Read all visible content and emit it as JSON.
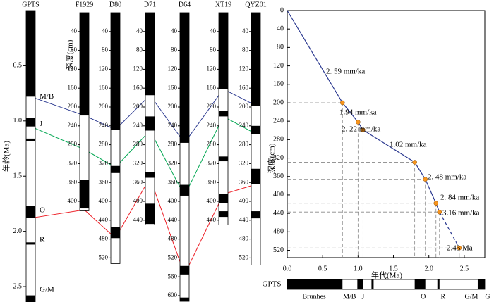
{
  "chart_data": [
    {
      "type": "stratigraphy",
      "ylabel": "年龄(Ma)",
      "depth_label": "深度(cm)",
      "gpts": {
        "name": "GPTS",
        "ylim": [
          0,
          2.64
        ],
        "yticks": [
          0.5,
          {
            "value": 1,
            "label": "1.0"
          },
          1.5,
          {
            "value": 2,
            "label": "2.0"
          },
          2.5
        ],
        "normal": [
          [
            0,
            0.78
          ],
          [
            0.97,
            1.05
          ],
          [
            1.16,
            1.18
          ],
          [
            1.77,
            1.88
          ],
          [
            2.1,
            2.12
          ],
          [
            2.58,
            2.64
          ]
        ],
        "labels": [
          {
            "text": "M/B",
            "age": 0.78,
            "color": "#2b3990"
          },
          {
            "text": "J",
            "age": 1.03,
            "color": "#000000"
          },
          {
            "text": "O",
            "age": 1.81,
            "color": "#000000"
          },
          {
            "text": "R",
            "age": 2.08,
            "color": "#000000"
          },
          {
            "text": "G/M",
            "age": 2.53,
            "color": "#2b3990"
          }
        ]
      },
      "cores": [
        {
          "name": "F1929",
          "ylim": [
            0,
            420
          ],
          "yticks": [
            40,
            80,
            120,
            160,
            200,
            240,
            280,
            320,
            360,
            400
          ],
          "normal": [
            [
              0,
              218
            ],
            [
              355,
              415
            ]
          ]
        },
        {
          "name": "D80",
          "ylim": [
            0,
            532
          ],
          "yticks": [
            40,
            80,
            120,
            160,
            200,
            240,
            280,
            320,
            360,
            400,
            440,
            480,
            520
          ],
          "normal": [
            [
              0,
              248
            ],
            [
              325,
              340
            ],
            [
              455,
              478
            ]
          ]
        },
        {
          "name": "D71",
          "ylim": [
            0,
            450
          ],
          "yticks": [
            40,
            80,
            120,
            160,
            200,
            240,
            280,
            320,
            360,
            400,
            440
          ],
          "normal": [
            [
              0,
              175
            ],
            [
              220,
              250
            ],
            [
              338,
              350
            ],
            [
              405,
              448
            ]
          ]
        },
        {
          "name": "D64",
          "ylim": [
            0,
            612
          ],
          "yticks": [
            40,
            80,
            120,
            160,
            200,
            240,
            280,
            320,
            360,
            400,
            440,
            480,
            520,
            560,
            600
          ],
          "normal": [
            [
              0,
              276
            ],
            [
              365,
              388
            ],
            [
              537,
              555
            ],
            [
              604,
              612
            ]
          ]
        },
        {
          "name": "XT19",
          "ylim": [
            0,
            450
          ],
          "yticks": [
            40,
            80,
            120,
            160,
            200,
            240,
            280,
            320,
            360,
            400,
            440
          ],
          "normal": [
            [
              0,
              162
            ],
            [
              208,
              220
            ],
            [
              305,
              315
            ],
            [
              385,
              403
            ],
            [
              421,
              433
            ]
          ]
        },
        {
          "name": "QYZ01",
          "ylim": [
            0,
            535
          ],
          "yticks": [
            40,
            80,
            120,
            160,
            200,
            240,
            280,
            320,
            360,
            400,
            440,
            480,
            520
          ],
          "normal": [
            [
              0,
              197
            ],
            [
              240,
              257
            ],
            [
              331,
              364
            ],
            [
              421,
              436
            ]
          ]
        }
      ],
      "correlations": [
        {
          "color": "#2b3990",
          "age": 0.78,
          "depths": [
            218,
            248,
            175,
            276,
            162,
            197
          ]
        },
        {
          "color": "#00a651",
          "age": 1.05,
          "depths": [
            290,
            328,
            250,
            388,
            220,
            257
          ]
        },
        {
          "color": "#ed1c24",
          "age": 1.88,
          "depths": [
            418,
            478,
            350,
            555,
            385,
            364
          ]
        }
      ]
    },
    {
      "type": "line",
      "xlabel": "年代(Ma)",
      "ylabel": "深度(cm)",
      "xlim": [
        0,
        2.79
      ],
      "ylim": [
        0,
        536
      ],
      "xticks": [
        {
          "value": 0,
          "label": "0.0"
        },
        0.5,
        {
          "value": 1,
          "label": "1.0"
        },
        1.5,
        {
          "value": 2,
          "label": "2.0"
        },
        2.5
      ],
      "yticks": [
        0,
        40,
        80,
        120,
        160,
        200,
        240,
        280,
        320,
        360,
        400,
        440,
        480,
        520
      ],
      "x": [
        0,
        0.78,
        1.0,
        1.07,
        1.8,
        1.95,
        2.1,
        2.15,
        2.43
      ],
      "values": [
        0,
        200,
        242,
        259,
        329,
        366,
        418,
        437,
        515
      ],
      "color": "#2b3990",
      "marker_color": "#f7941d",
      "dash_from_index": 7,
      "annotations": [
        "2. 59 mm/ka",
        "1.94 mm/ka",
        "2. 22 mm/ka",
        "1.02 mm/ka",
        "2. 48 mm/ka",
        "2. 84 mm/ka",
        "3.16 mm/ka"
      ],
      "end_label": "2.43 Ma",
      "polarity_name": "GPTS",
      "polarity": [
        [
          0,
          0.78
        ],
        [
          0.99,
          1.07
        ],
        [
          1.19,
          1.22
        ],
        [
          1.8,
          1.95
        ],
        [
          2.12,
          2.15
        ],
        [
          2.69,
          2.79
        ]
      ],
      "polarity_labels": [
        {
          "text": "Brunhes",
          "age": 0.38,
          "color": "#000000"
        },
        {
          "text": "M/B",
          "age": 0.88,
          "color": "#2b3990"
        },
        {
          "text": "J",
          "age": 1.07,
          "color": "#000000"
        },
        {
          "text": "O",
          "age": 1.92,
          "color": "#000000"
        },
        {
          "text": "R",
          "age": 2.2,
          "color": "#000000"
        },
        {
          "text": "G/M",
          "age": 2.6,
          "color": "#2b3990"
        },
        {
          "text": "G",
          "age": 2.83,
          "color": "#000000"
        }
      ]
    }
  ]
}
